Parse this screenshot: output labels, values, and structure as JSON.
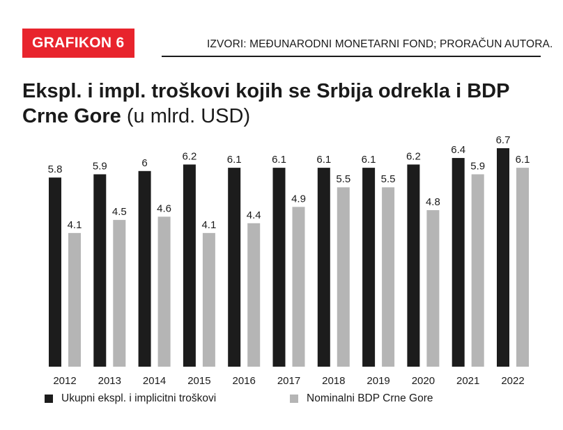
{
  "header": {
    "badge": "GRAFIKON 6",
    "source": "IZVORI: MEĐUNARODNI MONETARNI FOND; PRORAČUN AUTORA."
  },
  "chart_data": {
    "type": "bar",
    "title": "Ekspl. i impl. troškovi kojih se Srbija odrekla i BDP Crne Gore",
    "title_bold": "Ekspl. i impl. troškovi kojih se Srbija odrekla i BDP Crne Gore",
    "title_unit": "(u mlrd. USD)",
    "categories": [
      "2012",
      "2013",
      "2014",
      "2015",
      "2016",
      "2017",
      "2018",
      "2019",
      "2020",
      "2021",
      "2022"
    ],
    "series": [
      {
        "name": "Ukupni ekspl. i implicitni troškovi",
        "values": [
          5.8,
          5.9,
          6,
          6.2,
          6.1,
          6.1,
          6.1,
          6.1,
          6.2,
          6.4,
          6.7
        ],
        "labels": [
          "5.8",
          "5.9",
          "6",
          "6.2",
          "6.1",
          "6.1",
          "6.1",
          "6.1",
          "6.2",
          "6.4",
          "6.7"
        ],
        "color": "#1c1c1c"
      },
      {
        "name": "Nominalni BDP Crne Gore",
        "values": [
          4.1,
          4.5,
          4.6,
          4.1,
          4.4,
          4.9,
          5.5,
          5.5,
          4.8,
          5.9,
          6.1
        ],
        "labels": [
          "4.1",
          "4.5",
          "4.6",
          "4.1",
          "4.4",
          "4.9",
          "5.5",
          "5.5",
          "4.8",
          "5.9",
          "6.1"
        ],
        "color": "#b5b5b5"
      }
    ],
    "ylim": [
      0,
      6.7
    ],
    "grid": false,
    "legend_position": "bottom-left",
    "xlabel": "",
    "ylabel": ""
  },
  "colors": {
    "accent": "#e8242d",
    "text": "#1a1a1a"
  }
}
